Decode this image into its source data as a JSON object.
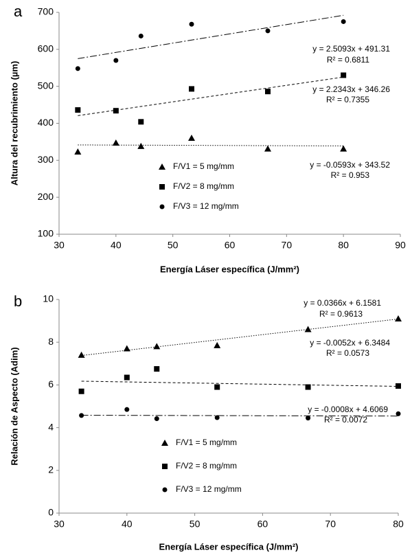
{
  "chart_data": [
    {
      "type": "scatter",
      "panel": "a",
      "x_label": "Energía Láser específica (J/mm²)",
      "y_label": "Altura del recubrimiento  (µm)",
      "xlim": [
        30,
        90
      ],
      "xticks": [
        30,
        40,
        50,
        60,
        70,
        80,
        90
      ],
      "ylim": [
        100,
        700
      ],
      "yticks": [
        100,
        200,
        300,
        400,
        500,
        600,
        700
      ],
      "x": [
        33.3,
        40,
        44.4,
        53.3,
        66.7,
        80
      ],
      "series": [
        {
          "name": "F/V1 = 5 mg/mm",
          "marker": "triangle",
          "color": "#000000",
          "values": [
            323,
            347,
            338,
            360,
            331,
            331
          ],
          "trendline": {
            "style": "dotted",
            "slope": -0.0593,
            "intercept": 343.52,
            "equation": "y = -0.0593x + 343.52",
            "r_squared": "R² = 0.953"
          }
        },
        {
          "name": "F/V2 = 8 mg/mm",
          "marker": "square",
          "color": "#000000",
          "values": [
            436,
            434,
            404,
            493,
            486,
            530
          ],
          "trendline": {
            "style": "dashed",
            "slope": 2.2343,
            "intercept": 346.26,
            "equation": "y = 2.2343x + 346.26",
            "r_squared": "R² = 0.7355"
          }
        },
        {
          "name": "F/V3 = 12 mg/mm",
          "marker": "circle",
          "color": "#000000",
          "values": [
            548,
            570,
            636,
            668,
            650,
            675
          ],
          "trendline": {
            "style": "dashdot",
            "slope": 2.5093,
            "intercept": 491.31,
            "equation": "y = 2.5093x + 491.31",
            "r_squared": "R² = 0.6811"
          }
        }
      ]
    },
    {
      "type": "scatter",
      "panel": "b",
      "x_label": "Energía Láser específica (J/mm²)",
      "y_label": "Relación de Aspecto  (Adim)",
      "xlim": [
        30,
        80
      ],
      "xticks": [
        30,
        40,
        50,
        60,
        70,
        80
      ],
      "ylim": [
        0,
        10
      ],
      "yticks": [
        0,
        2,
        4,
        6,
        8,
        10
      ],
      "x": [
        33.3,
        40,
        44.4,
        53.3,
        66.7,
        80
      ],
      "series": [
        {
          "name": "F/V1 = 5 mg/mm",
          "marker": "triangle",
          "color": "#000000",
          "values": [
            7.4,
            7.7,
            7.8,
            7.85,
            8.6,
            9.1
          ],
          "trendline": {
            "style": "dotted",
            "slope": 0.0366,
            "intercept": 6.1581,
            "equation": "y = 0.0366x + 6.1581",
            "r_squared": "R² = 0.9613"
          }
        },
        {
          "name": "F/V2 = 8 mg/mm",
          "marker": "square",
          "color": "#000000",
          "values": [
            5.7,
            6.35,
            6.75,
            5.9,
            5.9,
            5.95
          ],
          "trendline": {
            "style": "dashed",
            "slope": -0.0052,
            "intercept": 6.3484,
            "equation": "y = -0.0052x + 6.3484",
            "r_squared": "R² = 0.0573"
          }
        },
        {
          "name": "F/V3 = 12 mg/mm",
          "marker": "circle",
          "color": "#000000",
          "values": [
            4.57,
            4.85,
            4.42,
            4.47,
            4.45,
            4.65
          ],
          "trendline": {
            "style": "dashdot",
            "slope": -0.0008,
            "intercept": 4.6069,
            "equation": "y = -0.0008x + 4.6069",
            "r_squared": "R² = 0.0072"
          }
        }
      ]
    }
  ]
}
